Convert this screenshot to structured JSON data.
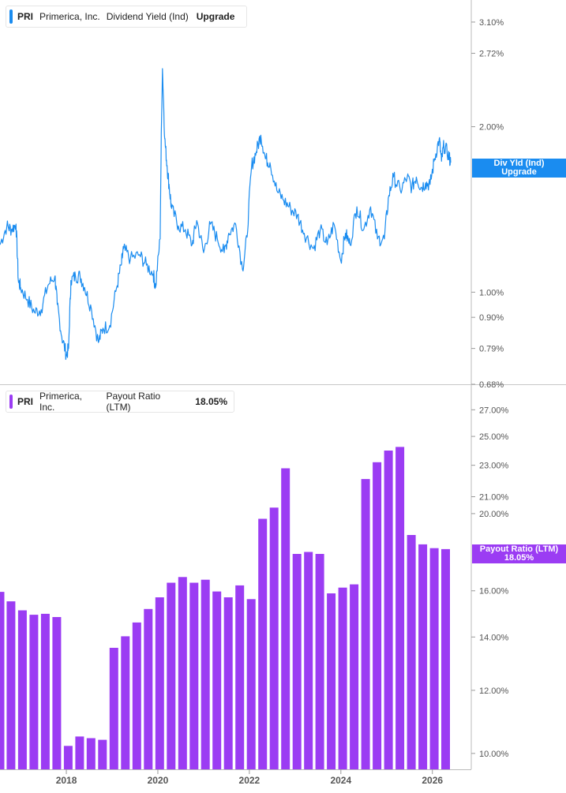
{
  "panels": [
    {
      "legend": {
        "symbol": "PRI",
        "company": "Primerica, Inc.",
        "metric": "Dividend Yield (Ind)",
        "value": "Upgrade",
        "color": "#1a8cf0"
      },
      "tag": {
        "line1": "Div Yld (Ind)",
        "line2": "Upgrade",
        "color": "#1a8cf0"
      }
    },
    {
      "legend": {
        "symbol": "PRI",
        "company": "Primerica, Inc.",
        "metric": "Payout Ratio (LTM)",
        "value": "18.05%",
        "color": "#9b3cf3"
      },
      "tag": {
        "line1": "Payout Ratio (LTM)",
        "line2": "18.05%",
        "color": "#9b3cf3"
      }
    }
  ],
  "x_axis": {
    "labels": [
      "2018",
      "2020",
      "2022",
      "2024",
      "2026"
    ],
    "years": [
      2018,
      2020,
      2022,
      2024,
      2026
    ]
  },
  "chart_data": [
    {
      "type": "line",
      "scale": "log",
      "series": [
        {
          "name": "Dividend Yield (Ind)"
        }
      ],
      "y_ticks": [
        "3.10%",
        "2.72%",
        "2.00%",
        "1.00%",
        "0.90%",
        "0.79%",
        "0.68%"
      ],
      "y_tick_values": [
        3.1,
        2.72,
        2.0,
        1.0,
        0.9,
        0.79,
        0.68
      ],
      "ylim": [
        0.68,
        3.4
      ],
      "xlim": [
        2016.55,
        2026.85
      ],
      "x": [
        2016.55,
        2016.7,
        2016.8,
        2016.9,
        2016.95,
        2017.0,
        2017.15,
        2017.3,
        2017.45,
        2017.6,
        2017.75,
        2017.8,
        2017.9,
        2018.0,
        2018.05,
        2018.1,
        2018.2,
        2018.3,
        2018.4,
        2018.55,
        2018.7,
        2018.8,
        2018.95,
        2019.1,
        2019.2,
        2019.25,
        2019.4,
        2019.6,
        2019.75,
        2019.9,
        2019.95,
        2020.05,
        2020.1,
        2020.15,
        2020.2,
        2020.25,
        2020.3,
        2020.45,
        2020.6,
        2020.75,
        2020.85,
        2021.0,
        2021.15,
        2021.3,
        2021.45,
        2021.55,
        2021.7,
        2021.85,
        2021.95,
        2022.05,
        2022.15,
        2022.25,
        2022.35,
        2022.45,
        2022.6,
        2022.75,
        2022.9,
        2023.05,
        2023.2,
        2023.4,
        2023.55,
        2023.7,
        2023.85,
        2024.0,
        2024.1,
        2024.2,
        2024.35,
        2024.5,
        2024.65,
        2024.8,
        2024.95,
        2025.05,
        2025.15,
        2025.3,
        2025.45,
        2025.55,
        2025.65,
        2025.75,
        2025.85,
        2025.95,
        2026.05,
        2026.15,
        2026.2,
        2026.25,
        2026.35,
        2026.4
      ],
      "y": [
        1.22,
        1.32,
        1.3,
        1.33,
        1.05,
        1.02,
        0.97,
        0.92,
        0.93,
        1.03,
        1.07,
        0.95,
        0.83,
        0.77,
        0.79,
        1.05,
        1.07,
        1.07,
        1.02,
        0.93,
        0.81,
        0.86,
        0.87,
        1.02,
        1.12,
        1.2,
        1.15,
        1.17,
        1.12,
        1.08,
        1.02,
        1.25,
        2.55,
        1.9,
        1.7,
        1.55,
        1.42,
        1.32,
        1.3,
        1.22,
        1.35,
        1.18,
        1.33,
        1.25,
        1.18,
        1.28,
        1.33,
        1.1,
        1.26,
        1.7,
        1.8,
        1.93,
        1.75,
        1.72,
        1.53,
        1.47,
        1.42,
        1.38,
        1.28,
        1.2,
        1.3,
        1.22,
        1.33,
        1.14,
        1.28,
        1.22,
        1.43,
        1.3,
        1.43,
        1.25,
        1.25,
        1.5,
        1.62,
        1.53,
        1.62,
        1.55,
        1.62,
        1.55,
        1.58,
        1.57,
        1.75,
        1.9,
        1.73,
        1.85,
        1.78,
        1.72
      ]
    },
    {
      "type": "bar",
      "scale": "log",
      "series": [
        {
          "name": "Payout Ratio (LTM)"
        }
      ],
      "y_ticks": [
        "27.00%",
        "25.00%",
        "23.00%",
        "21.00%",
        "20.00%",
        "16.00%",
        "14.00%",
        "12.00%",
        "10.00%"
      ],
      "y_tick_values": [
        27,
        25,
        23,
        21,
        20,
        16,
        14,
        12,
        10
      ],
      "ylim": [
        9.55,
        29.0
      ],
      "xlim": [
        2016.55,
        2026.85
      ],
      "x": [
        2016.55,
        2016.79,
        2017.04,
        2017.29,
        2017.54,
        2017.79,
        2018.04,
        2018.29,
        2018.54,
        2018.79,
        2019.04,
        2019.29,
        2019.54,
        2019.79,
        2020.04,
        2020.29,
        2020.54,
        2020.79,
        2021.04,
        2021.29,
        2021.54,
        2021.79,
        2022.04,
        2022.29,
        2022.54,
        2022.79,
        2023.04,
        2023.29,
        2023.54,
        2023.79,
        2024.04,
        2024.29,
        2024.54,
        2024.79,
        2025.04,
        2025.29,
        2025.54,
        2025.79,
        2026.04,
        2026.29
      ],
      "values": [
        15.95,
        15.52,
        15.12,
        14.93,
        14.97,
        14.83,
        10.22,
        10.5,
        10.45,
        10.4,
        13.57,
        14.03,
        14.6,
        15.18,
        15.7,
        16.38,
        16.65,
        16.38,
        16.52,
        15.97,
        15.7,
        16.25,
        15.62,
        19.7,
        20.35,
        22.8,
        17.8,
        17.9,
        17.8,
        15.88,
        16.15,
        16.3,
        22.1,
        23.2,
        24.0,
        24.25,
        18.8,
        18.3,
        18.1,
        18.05
      ]
    }
  ]
}
